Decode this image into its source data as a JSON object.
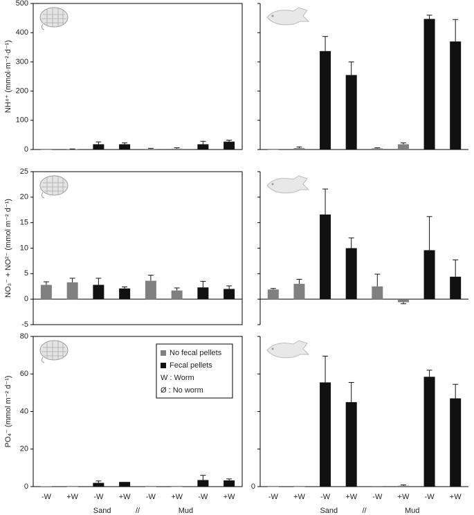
{
  "chart_data": [
    {
      "type": "bar",
      "icon": "worm",
      "frame": true,
      "ylabel": "NH⁴⁺ (mmol·m⁻²·d⁻¹)",
      "ylim": [
        0,
        500
      ],
      "yticks": [
        0,
        100,
        200,
        300,
        400,
        500
      ],
      "series": [
        {
          "color": "#808080",
          "values": [
            0,
            1,
            null,
            null,
            2,
            3,
            null,
            null
          ],
          "errors": [
            null,
            1,
            null,
            null,
            2,
            3,
            null,
            null
          ]
        },
        {
          "color": "#111111",
          "values": [
            null,
            null,
            18,
            18,
            null,
            null,
            18,
            27
          ],
          "errors": [
            null,
            null,
            8,
            5,
            null,
            null,
            10,
            5
          ]
        }
      ]
    },
    {
      "type": "bar",
      "icon": "fish",
      "frame": false,
      "ylim": [
        0,
        500
      ],
      "minor_yticks": [
        0,
        100,
        200,
        300,
        400,
        500
      ],
      "series": [
        {
          "color": "#808080",
          "values": [
            0,
            5,
            null,
            null,
            4,
            18,
            null,
            null
          ],
          "errors": [
            null,
            4,
            null,
            null,
            2,
            5,
            null,
            null
          ]
        },
        {
          "color": "#111111",
          "values": [
            null,
            null,
            337,
            255,
            null,
            null,
            447,
            370
          ],
          "errors": [
            null,
            null,
            50,
            45,
            null,
            null,
            13,
            75
          ]
        }
      ]
    },
    {
      "type": "bar",
      "icon": "worm",
      "frame": true,
      "ylabel": "NO₃⁻ + NO²⁻ (mmol m⁻² d⁻¹)",
      "ylim": [
        -5,
        25
      ],
      "yticks": [
        -5,
        0,
        5,
        10,
        15,
        20,
        25
      ],
      "series": [
        {
          "color": "#808080",
          "values": [
            2.8,
            3.3,
            null,
            null,
            3.6,
            1.7,
            null,
            null
          ],
          "errors": [
            0.6,
            0.8,
            null,
            null,
            1.1,
            0.5,
            null,
            null
          ]
        },
        {
          "color": "#111111",
          "values": [
            null,
            null,
            2.8,
            2.1,
            null,
            null,
            2.3,
            2.0
          ],
          "errors": [
            null,
            null,
            1.3,
            0.3,
            null,
            null,
            1.2,
            0.6
          ]
        }
      ]
    },
    {
      "type": "bar",
      "icon": "fish",
      "frame": false,
      "ylim": [
        -5,
        25
      ],
      "minor_yticks": [
        -5,
        0,
        5,
        10,
        15,
        20,
        25
      ],
      "series": [
        {
          "color": "#808080",
          "values": [
            1.9,
            3.0,
            null,
            null,
            2.5,
            -0.6,
            null,
            null
          ],
          "errors": [
            0.2,
            0.9,
            null,
            null,
            2.4,
            0.3,
            null,
            null
          ]
        },
        {
          "color": "#111111",
          "values": [
            null,
            null,
            16.6,
            10.0,
            null,
            null,
            9.6,
            4.4
          ],
          "errors": [
            null,
            null,
            5,
            2,
            null,
            null,
            6.6,
            3.3
          ]
        }
      ]
    },
    {
      "type": "bar",
      "icon": "worm",
      "frame": true,
      "ylabel": "PO₄⁻ (mmol m⁻² d⁻¹)",
      "ylim": [
        0,
        80
      ],
      "yticks": [
        0,
        20,
        40,
        60,
        80
      ],
      "categories": [
        "-W",
        "+W",
        "-W",
        "+W",
        "-W",
        "+W",
        "-W",
        "+W"
      ],
      "group_labels": [
        "Sand",
        "//",
        "Mud"
      ],
      "legend": true,
      "legend_notes": [
        "W : Worm",
        "Ø : No worm"
      ],
      "series": [
        {
          "name": "No fecal pellets",
          "color": "#808080",
          "values": [
            0.2,
            0,
            null,
            null,
            0,
            0,
            null,
            null
          ],
          "errors": [
            null,
            null,
            null,
            null,
            null,
            null,
            null,
            null
          ]
        },
        {
          "name": "Fecal pellets",
          "color": "#111111",
          "values": [
            null,
            null,
            2,
            2.5,
            null,
            null,
            3.5,
            3.3
          ],
          "errors": [
            null,
            null,
            1,
            null,
            null,
            null,
            2.5,
            0.8
          ]
        }
      ]
    },
    {
      "type": "bar",
      "icon": "fish",
      "frame": false,
      "ylim": [
        0,
        80
      ],
      "yticks": [
        0
      ],
      "minor_yticks": [
        20,
        40,
        60,
        80
      ],
      "categories": [
        "-W",
        "+W",
        "-W",
        "+W",
        "-W",
        "+W",
        "-W",
        "+W"
      ],
      "group_labels": [
        "Sand",
        "//",
        "Mud"
      ],
      "series": [
        {
          "color": "#808080",
          "values": [
            0,
            0,
            null,
            null,
            0.3,
            0.5,
            null,
            null
          ],
          "errors": [
            null,
            null,
            null,
            null,
            null,
            0.4,
            null,
            null
          ]
        },
        {
          "color": "#111111",
          "values": [
            null,
            null,
            55.5,
            45,
            null,
            null,
            58.5,
            47
          ],
          "errors": [
            null,
            null,
            14,
            10.5,
            null,
            null,
            3.5,
            7.5
          ]
        }
      ]
    }
  ]
}
